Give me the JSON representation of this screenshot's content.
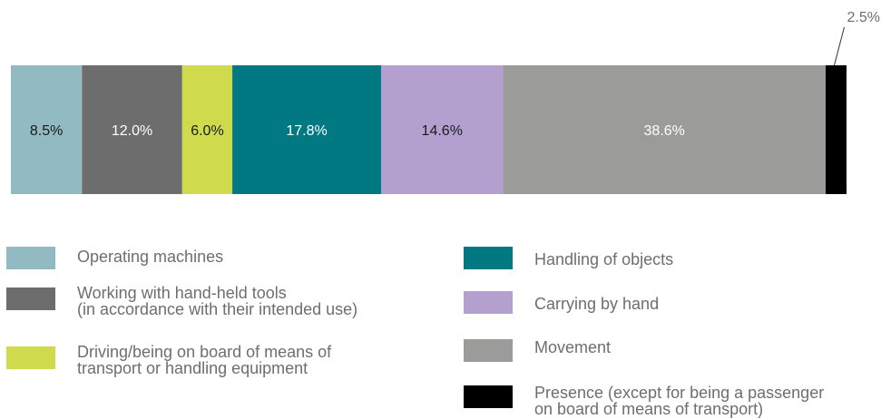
{
  "chart_data": {
    "type": "bar",
    "orientation": "horizontal-stacked-100",
    "title": "",
    "xlabel": "",
    "ylabel": "",
    "series": [
      {
        "name": "Operating machines",
        "value": 8.5,
        "label": "8.5%",
        "color": "#92bac3",
        "label_color": "#1a1a1a"
      },
      {
        "name": "Working with hand-held tools\n(in accordance with their intended use)",
        "value": 12.0,
        "label": "12.0%",
        "color": "#6d6d6d",
        "label_color": "#ffffff"
      },
      {
        "name": "Driving/being on board of means of\ntransport or handling equipment",
        "value": 6.0,
        "label": "6.0%",
        "color": "#cfdb4c",
        "label_color": "#1a1a1a"
      },
      {
        "name": "Handling of objects",
        "value": 17.8,
        "label": "17.8%",
        "color": "#007983",
        "label_color": "#ffffff"
      },
      {
        "name": "Carrying by hand",
        "value": 14.6,
        "label": "14.6%",
        "color": "#b4a0cf",
        "label_color": "#1a1a1a"
      },
      {
        "name": "Movement",
        "value": 38.6,
        "label": "38.6%",
        "color": "#9b9b9a",
        "label_color": "#ffffff"
      },
      {
        "name": "Presence (except for being a passenger\non board of means of transport)",
        "value": 2.5,
        "label": "2.5%",
        "color": "#000000",
        "label_color": "#6d6e71",
        "label_outside": true
      }
    ],
    "legend": {
      "placement": "bottom",
      "columns": [
        [
          "Operating machines",
          "Working with hand-held tools\n(in accordance with their intended use)",
          "Driving/being on board of means of\ntransport or handling equipment"
        ],
        [
          "Handling of objects",
          "Carrying by hand",
          "Movement",
          "Presence (except for being a passenger\non board of means of transport)"
        ]
      ]
    }
  }
}
